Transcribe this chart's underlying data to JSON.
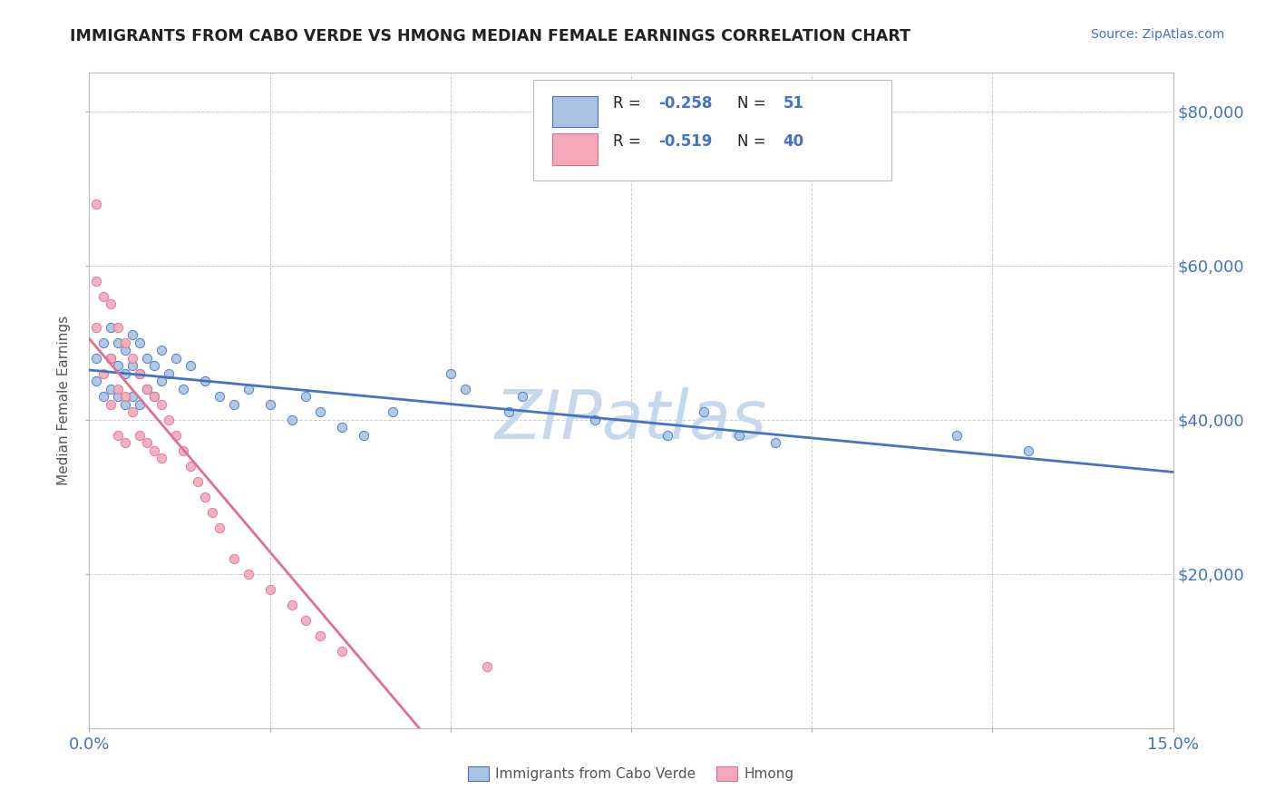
{
  "title": "IMMIGRANTS FROM CABO VERDE VS HMONG MEDIAN FEMALE EARNINGS CORRELATION CHART",
  "source_text": "Source: ZipAtlas.com",
  "ylabel": "Median Female Earnings",
  "x_min": 0.0,
  "x_max": 0.15,
  "y_min": 0,
  "y_max": 85000,
  "y_ticks_right": [
    20000,
    40000,
    60000,
    80000
  ],
  "y_tick_labels_right": [
    "$20,000",
    "$40,000",
    "$60,000",
    "$80,000"
  ],
  "cabo_verde_R": -0.258,
  "cabo_verde_N": 51,
  "hmong_R": -0.519,
  "hmong_N": 40,
  "cabo_verde_color": "#aac4e2",
  "hmong_color": "#f4a8b8",
  "cabo_verde_line_color": "#4472c4",
  "hmong_line_color": "#e07090",
  "cabo_verde_scatter_x": [
    0.001,
    0.001,
    0.002,
    0.002,
    0.003,
    0.003,
    0.003,
    0.004,
    0.004,
    0.004,
    0.005,
    0.005,
    0.005,
    0.006,
    0.006,
    0.006,
    0.007,
    0.007,
    0.007,
    0.008,
    0.008,
    0.009,
    0.009,
    0.01,
    0.01,
    0.011,
    0.012,
    0.013,
    0.014,
    0.016,
    0.018,
    0.02,
    0.022,
    0.025,
    0.028,
    0.03,
    0.032,
    0.035,
    0.038,
    0.042,
    0.05,
    0.052,
    0.058,
    0.06,
    0.07,
    0.08,
    0.085,
    0.09,
    0.095,
    0.12,
    0.13
  ],
  "cabo_verde_scatter_y": [
    48000,
    45000,
    50000,
    43000,
    52000,
    48000,
    44000,
    50000,
    47000,
    43000,
    49000,
    46000,
    42000,
    51000,
    47000,
    43000,
    50000,
    46000,
    42000,
    48000,
    44000,
    47000,
    43000,
    49000,
    45000,
    46000,
    48000,
    44000,
    47000,
    45000,
    43000,
    42000,
    44000,
    42000,
    40000,
    43000,
    41000,
    39000,
    38000,
    41000,
    46000,
    44000,
    41000,
    43000,
    40000,
    38000,
    41000,
    38000,
    37000,
    38000,
    36000
  ],
  "hmong_scatter_x": [
    0.001,
    0.001,
    0.001,
    0.002,
    0.002,
    0.003,
    0.003,
    0.003,
    0.004,
    0.004,
    0.004,
    0.005,
    0.005,
    0.005,
    0.006,
    0.006,
    0.007,
    0.007,
    0.008,
    0.008,
    0.009,
    0.009,
    0.01,
    0.01,
    0.011,
    0.012,
    0.013,
    0.014,
    0.015,
    0.016,
    0.017,
    0.018,
    0.02,
    0.022,
    0.025,
    0.028,
    0.03,
    0.032,
    0.035,
    0.055
  ],
  "hmong_scatter_y": [
    68000,
    58000,
    52000,
    56000,
    46000,
    55000,
    48000,
    42000,
    52000,
    44000,
    38000,
    50000,
    43000,
    37000,
    48000,
    41000,
    46000,
    38000,
    44000,
    37000,
    43000,
    36000,
    42000,
    35000,
    40000,
    38000,
    36000,
    34000,
    32000,
    30000,
    28000,
    26000,
    22000,
    20000,
    18000,
    16000,
    14000,
    12000,
    10000,
    8000
  ],
  "watermark": "ZIPatlas",
  "watermark_color": "#c8d8ec",
  "background_color": "#ffffff",
  "grid_color": "#cccccc"
}
